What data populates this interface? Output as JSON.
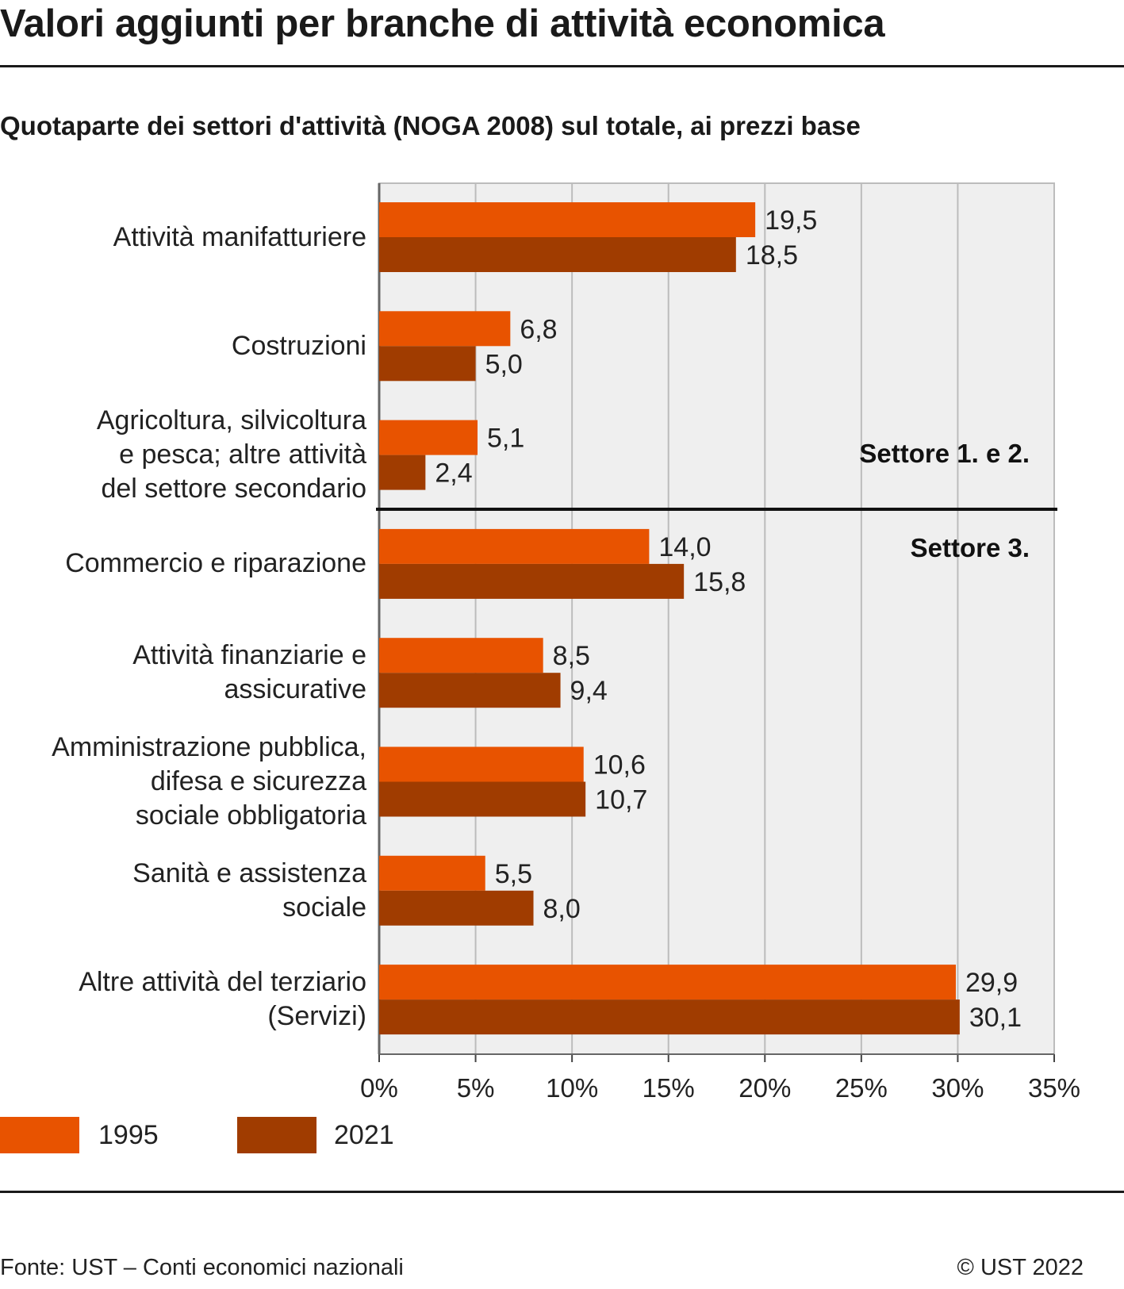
{
  "title": "Valori aggiunti per branche di attività economica",
  "subtitle": "Quotaparte dei settori d'attività (NOGA 2008) sul totale, ai prezzi base",
  "colors": {
    "s1995": "#e85300",
    "s2021": "#a03c00",
    "plot_bg": "#efefef",
    "grid": "#bcbcbc"
  },
  "sector_labels": [
    "Settore 1. e 2.",
    "Settore 3."
  ],
  "chart_data": {
    "type": "bar",
    "orientation": "horizontal",
    "categories": [
      "Attività manifatturiere",
      "Costruzioni",
      "Agricoltura, silvicoltura\ne pesca; altre attività\ndel settore secondario",
      "Commercio e riparazione",
      "Attività finanziarie e\nassicurative",
      "Amministrazione pubblica,\ndifesa e sicurezza\nsociale obbligatoria",
      "Sanità e assistenza\nsociale",
      "Altre attività del terziario\n(Servizi)"
    ],
    "series": [
      {
        "name": "1995",
        "values": [
          19.5,
          6.8,
          5.1,
          14.0,
          8.5,
          10.6,
          5.5,
          29.9
        ],
        "labels": [
          "19,5",
          "6,8",
          "5,1",
          "14,0",
          "8,5",
          "10,6",
          "5,5",
          "29,9"
        ]
      },
      {
        "name": "2021",
        "values": [
          18.5,
          5.0,
          2.4,
          15.8,
          9.4,
          10.7,
          8.0,
          30.1
        ],
        "labels": [
          "18,5",
          "5,0",
          "2,4",
          "15,8",
          "9,4",
          "10,7",
          "8,0",
          "30,1"
        ]
      }
    ],
    "xlim": [
      0,
      35
    ],
    "xticks": [
      "0%",
      "5%",
      "10%",
      "15%",
      "20%",
      "25%",
      "30%",
      "35%"
    ],
    "grid": true,
    "legend_position": "bottom-left"
  },
  "footer": {
    "source": "Fonte: UST – Conti economici nazionali",
    "copyright": "© UST 2022"
  }
}
